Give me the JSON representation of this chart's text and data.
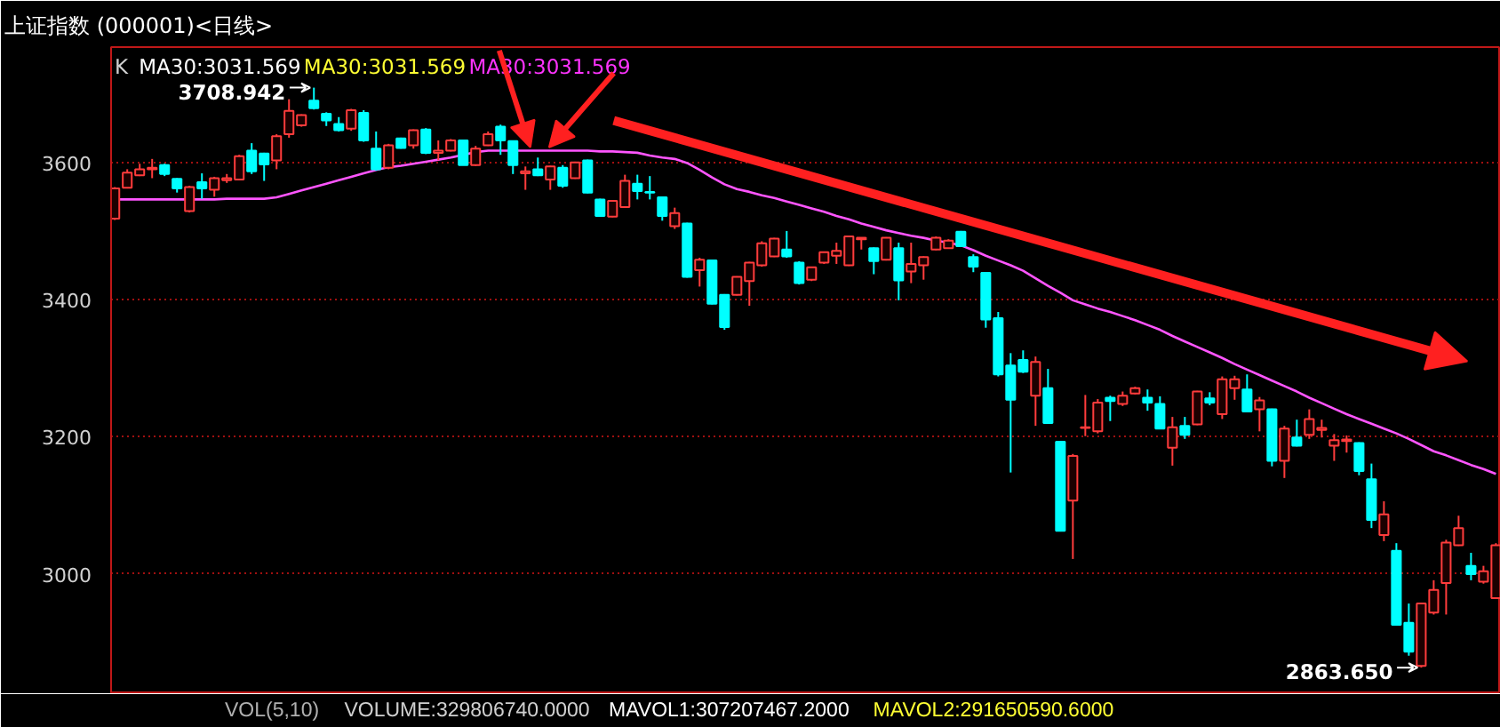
{
  "chart_data": {
    "type": "candlestick",
    "title": "上证指数 (000001)<日线>",
    "categories": [
      null,
      null,
      null,
      null,
      null,
      null,
      null,
      null,
      null,
      null,
      null,
      null,
      null,
      null,
      null,
      null,
      null,
      null,
      null,
      null,
      null,
      null,
      null,
      null,
      null,
      null,
      null,
      null,
      null,
      null,
      null,
      null,
      null,
      null,
      null,
      null,
      null,
      null,
      null,
      null,
      null,
      null,
      null,
      null,
      null,
      null,
      null,
      null,
      null,
      null,
      null,
      null,
      null,
      null,
      null,
      null,
      null,
      null,
      null,
      null,
      null,
      null,
      null,
      null,
      null,
      null,
      null,
      null,
      null,
      null,
      null,
      null,
      null,
      null,
      null,
      null,
      null,
      null,
      null,
      null,
      null,
      null,
      null,
      null,
      null,
      null,
      null,
      null,
      null,
      null,
      null,
      null,
      null,
      null,
      null,
      null,
      null,
      null,
      null,
      null,
      null,
      null,
      null,
      null,
      null,
      null,
      null,
      null,
      null,
      null,
      null,
      null
    ],
    "ohlc": [
      [
        3518,
        3564,
        3516,
        3562
      ],
      [
        3563,
        3590,
        3562,
        3585
      ],
      [
        3581,
        3598,
        3580,
        3590
      ],
      [
        3590,
        3605,
        3577,
        3592
      ],
      [
        3596,
        3598,
        3580,
        3583
      ],
      [
        3576,
        3577,
        3556,
        3562
      ],
      [
        3529,
        3566,
        3527,
        3564
      ],
      [
        3571,
        3584,
        3547,
        3562
      ],
      [
        3560,
        3579,
        3550,
        3577
      ],
      [
        3574,
        3583,
        3570,
        3577
      ],
      [
        3575,
        3611,
        3574,
        3609
      ],
      [
        3617,
        3628,
        3583,
        3587
      ],
      [
        3613,
        3614,
        3573,
        3597
      ],
      [
        3603,
        3641,
        3590,
        3638
      ],
      [
        3641,
        3692,
        3636,
        3675
      ],
      [
        3654,
        3670,
        3652,
        3669
      ],
      [
        3690,
        3708.942,
        3677,
        3679
      ],
      [
        3671,
        3673,
        3653,
        3661
      ],
      [
        3656,
        3666,
        3645,
        3647
      ],
      [
        3649,
        3678,
        3646,
        3676
      ],
      [
        3672,
        3676,
        3630,
        3632
      ],
      [
        3620,
        3645,
        3588,
        3590
      ],
      [
        3592,
        3627,
        3590,
        3625
      ],
      [
        3635,
        3636,
        3620,
        3621
      ],
      [
        3625,
        3648,
        3620,
        3647
      ],
      [
        3648,
        3650,
        3612,
        3614
      ],
      [
        3614,
        3632,
        3603,
        3617
      ],
      [
        3617,
        3634,
        3616,
        3632
      ],
      [
        3632,
        3633,
        3596,
        3596
      ],
      [
        3596,
        3624,
        3595,
        3620
      ],
      [
        3625,
        3645,
        3624,
        3641
      ],
      [
        3652,
        3655,
        3611,
        3632
      ],
      [
        3631,
        3632,
        3583,
        3596
      ],
      [
        3584,
        3594,
        3560,
        3587
      ],
      [
        3590,
        3607,
        3580,
        3581
      ],
      [
        3575,
        3595,
        3560,
        3594
      ],
      [
        3592,
        3596,
        3563,
        3566
      ],
      [
        3577,
        3601,
        3576,
        3600
      ],
      [
        3603,
        3604,
        3555,
        3556
      ],
      [
        3546,
        3547,
        3521,
        3522
      ],
      [
        3521,
        3545,
        3520,
        3544
      ],
      [
        3535,
        3582,
        3534,
        3573
      ],
      [
        3569,
        3582,
        3546,
        3558
      ],
      [
        3557,
        3580,
        3546,
        3556
      ],
      [
        3549,
        3550,
        3515,
        3522
      ],
      [
        3507,
        3534,
        3503,
        3526
      ],
      [
        3511,
        3512,
        3432,
        3433
      ],
      [
        3443,
        3461,
        3419,
        3458
      ],
      [
        3457,
        3458,
        3393,
        3394
      ],
      [
        3407,
        3408,
        3356,
        3360
      ],
      [
        3407,
        3434,
        3406,
        3433
      ],
      [
        3427,
        3455,
        3391,
        3454
      ],
      [
        3450,
        3485,
        3448,
        3482
      ],
      [
        3463,
        3490,
        3462,
        3489
      ],
      [
        3473,
        3500,
        3461,
        3463
      ],
      [
        3454,
        3456,
        3422,
        3424
      ],
      [
        3429,
        3448,
        3427,
        3447
      ],
      [
        3454,
        3470,
        3452,
        3469
      ],
      [
        3464,
        3483,
        3452,
        3471
      ],
      [
        3450,
        3493,
        3449,
        3492
      ],
      [
        3488,
        3490,
        3473,
        3490
      ],
      [
        3475,
        3476,
        3437,
        3456
      ],
      [
        3458,
        3491,
        3457,
        3490
      ],
      [
        3475,
        3483,
        3399,
        3428
      ],
      [
        3441,
        3483,
        3424,
        3452
      ],
      [
        3450,
        3463,
        3429,
        3462
      ],
      [
        3473,
        3492,
        3472,
        3490
      ],
      [
        3475,
        3488,
        3474,
        3486
      ],
      [
        3499,
        3500,
        3477,
        3478
      ],
      [
        3462,
        3466,
        3440,
        3448
      ],
      [
        3439,
        3440,
        3359,
        3371
      ],
      [
        3373,
        3382,
        3288,
        3291
      ],
      [
        3304,
        3322,
        3148,
        3254
      ],
      [
        3312,
        3326,
        3293,
        3295
      ],
      [
        3260,
        3317,
        3216,
        3309
      ],
      [
        3271,
        3299,
        3219,
        3220
      ],
      [
        3193,
        3194,
        3062,
        3063
      ],
      [
        3107,
        3175,
        3022,
        3172
      ],
      [
        3213,
        3261,
        3201,
        3214
      ],
      [
        3208,
        3255,
        3205,
        3250
      ],
      [
        3257,
        3260,
        3223,
        3252
      ],
      [
        3248,
        3266,
        3245,
        3260
      ],
      [
        3263,
        3273,
        3262,
        3271
      ],
      [
        3257,
        3269,
        3238,
        3250
      ],
      [
        3248,
        3259,
        3211,
        3212
      ],
      [
        3184,
        3229,
        3158,
        3214
      ],
      [
        3216,
        3229,
        3197,
        3203
      ],
      [
        3218,
        3267,
        3217,
        3266
      ],
      [
        3256,
        3265,
        3246,
        3250
      ],
      [
        3233,
        3288,
        3226,
        3284
      ],
      [
        3271,
        3289,
        3254,
        3284
      ],
      [
        3269,
        3291,
        3236,
        3237
      ],
      [
        3240,
        3258,
        3208,
        3253
      ],
      [
        3240,
        3241,
        3157,
        3165
      ],
      [
        3165,
        3216,
        3140,
        3212
      ],
      [
        3199,
        3225,
        3186,
        3187
      ],
      [
        3203,
        3240,
        3197,
        3226
      ],
      [
        3210,
        3225,
        3199,
        3213
      ],
      [
        3187,
        3204,
        3165,
        3195
      ],
      [
        3194,
        3202,
        3177,
        3196
      ],
      [
        3191,
        3192,
        3144,
        3150
      ],
      [
        3138,
        3161,
        3067,
        3079
      ],
      [
        3057,
        3106,
        3048,
        3087
      ],
      [
        3034,
        3045,
        2925,
        2926
      ],
      [
        2929,
        2957,
        2881,
        2887
      ],
      [
        2866,
        2958,
        2863.65,
        2957
      ],
      [
        2944,
        2991,
        2941,
        2977
      ],
      [
        2987,
        3050,
        2941,
        3046
      ],
      [
        3042,
        3085,
        3041,
        3067
      ],
      [
        3012,
        3031,
        2991,
        3000
      ],
      [
        2989,
        3012,
        2986,
        3004
      ],
      [
        2965,
        3045,
        2964,
        3042
      ]
    ],
    "series": [
      {
        "type": "line",
        "color": "#ff55ff",
        "values": [
          3546,
          3546,
          3546,
          3546,
          3546,
          3546,
          3546,
          3546,
          3546,
          3547,
          3547,
          3547,
          3547,
          3549,
          3554,
          3559,
          3564,
          3569,
          3574,
          3579,
          3584,
          3589,
          3593,
          3595,
          3598,
          3601,
          3604,
          3607,
          3611,
          3615,
          3617,
          3617,
          3617,
          3617,
          3617,
          3617,
          3617,
          3617,
          3617,
          3616,
          3616,
          3615,
          3614,
          3610,
          3607,
          3605,
          3599,
          3589,
          3578,
          3568,
          3561,
          3557,
          3552,
          3548,
          3543,
          3538,
          3533,
          3528,
          3522,
          3517,
          3511,
          3506,
          3501,
          3497,
          3493,
          3490,
          3486,
          3483,
          3479,
          3472,
          3464,
          3457,
          3450,
          3442,
          3431,
          3420,
          3410,
          3399,
          3393,
          3387,
          3382,
          3376,
          3370,
          3363,
          3356,
          3347,
          3339,
          3331,
          3323,
          3315,
          3306,
          3298,
          3290,
          3282,
          3274,
          3266,
          3257,
          3249,
          3241,
          3233,
          3226,
          3219,
          3212,
          3205,
          3197,
          3188,
          3179,
          3173,
          3166,
          3159,
          3153,
          3146
        ]
      }
    ],
    "ylim": [
      2825,
      3768
    ],
    "yticks": [
      3000,
      3200,
      3400,
      3600
    ],
    "grid": "y",
    "tick_labels": "y",
    "annotations": [
      "K",
      "MA30:3031.569",
      "MA30:3031.569",
      "MA30:3031.569",
      "VOL(5,10)",
      "VOLUME:329806740.0000",
      "MAVOL1:307207467.2000",
      "MAVOL2:291650590.6000",
      "3708.942",
      "2863.650"
    ]
  }
}
